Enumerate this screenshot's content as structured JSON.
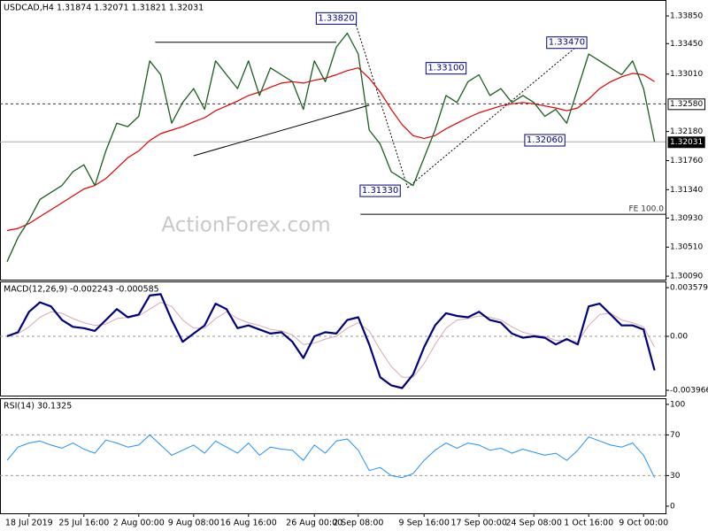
{
  "chart_data": [
    {
      "type": "line",
      "title": "USDCAD,H4  1.31874 1.32071 1.31821 1.32031",
      "watermark": "ActionForex.com",
      "categories": [
        null,
        null,
        "18 Jul 2019",
        null,
        null,
        null,
        null,
        "25 Jul 16:00",
        null,
        null,
        null,
        null,
        "2 Aug 00:00",
        null,
        null,
        null,
        null,
        "9 Aug 08:00",
        null,
        null,
        null,
        null,
        "16 Aug 16:00",
        null,
        null,
        null,
        null,
        null,
        "26 Aug 00:00",
        null,
        null,
        null,
        "2 Sep 08:00",
        null,
        null,
        null,
        null,
        null,
        "9 Sep 16:00",
        null,
        null,
        null,
        null,
        "17 Sep 00:00",
        null,
        null,
        null,
        null,
        "24 Sep 08:00",
        null,
        null,
        null,
        null,
        "1 Oct 16:00",
        null,
        null,
        null,
        null,
        "9 Oct 00:00",
        null
      ],
      "series": [
        {
          "color": "#1b5e20",
          "width": 1.3,
          "values": [
            1.303,
            1.3065,
            1.309,
            1.312,
            1.313,
            1.314,
            1.316,
            1.317,
            1.314,
            1.319,
            1.323,
            1.3225,
            1.324,
            1.332,
            1.33,
            1.323,
            1.326,
            1.328,
            1.325,
            1.332,
            1.33,
            1.328,
            1.332,
            1.327,
            1.331,
            1.33,
            1.329,
            1.325,
            1.332,
            1.329,
            1.334,
            1.336,
            1.333,
            1.322,
            1.32,
            1.316,
            1.315,
            1.314,
            1.318,
            1.322,
            1.327,
            1.326,
            1.329,
            1.33,
            1.327,
            1.328,
            1.326,
            1.327,
            1.326,
            1.324,
            1.325,
            1.323,
            1.328,
            1.333,
            1.332,
            1.331,
            1.33,
            1.332,
            1.328,
            1.3203
          ]
        },
        {
          "color": "#e00000",
          "width": 1.2,
          "values": [
            1.3075,
            1.3078,
            1.3085,
            1.3095,
            1.3105,
            1.3115,
            1.3125,
            1.3135,
            1.314,
            1.315,
            1.3165,
            1.318,
            1.319,
            1.3205,
            1.3215,
            1.322,
            1.3225,
            1.3232,
            1.3238,
            1.3248,
            1.3255,
            1.3262,
            1.327,
            1.3275,
            1.3282,
            1.3288,
            1.329,
            1.3288,
            1.3292,
            1.3295,
            1.33,
            1.3306,
            1.331,
            1.3295,
            1.3275,
            1.325,
            1.3228,
            1.3212,
            1.3208,
            1.3212,
            1.3222,
            1.323,
            1.3238,
            1.3245,
            1.325,
            1.3255,
            1.3258,
            1.326,
            1.3258,
            1.3255,
            1.3252,
            1.3248,
            1.3252,
            1.3265,
            1.328,
            1.329,
            1.3297,
            1.3302,
            1.33,
            1.329
          ]
        }
      ],
      "ylim": [
        1.3004,
        1.3408
      ],
      "yticks": [
        {
          "value": 1.3385,
          "label": "1.33850"
        },
        {
          "value": 1.3345,
          "label": "1.33450"
        },
        {
          "value": 1.3301,
          "label": "1.33010"
        },
        {
          "value": 1.3218,
          "label": "1.32180"
        },
        {
          "value": 1.3176,
          "label": "1.31760"
        },
        {
          "value": 1.3134,
          "label": "1.31340"
        },
        {
          "value": 1.3093,
          "label": "1.30930"
        },
        {
          "value": 1.3051,
          "label": "1.30510"
        },
        {
          "value": 1.3009,
          "label": "1.30090"
        }
      ],
      "hlines": [
        {
          "value": 1.3258,
          "label": "1.32580",
          "style": "dashed"
        },
        {
          "value": 1.32031,
          "label": "1.32031",
          "style": "current"
        }
      ],
      "annotations": [
        {
          "x": 30,
          "value": 1.3382,
          "label": "1.33820"
        },
        {
          "x": 51,
          "value": 1.3347,
          "label": "1.33470"
        },
        {
          "x": 40,
          "value": 1.331,
          "label": "1.33100"
        },
        {
          "x": 49,
          "value": 1.3206,
          "label": "1.32060"
        },
        {
          "x": 34,
          "value": 1.3133,
          "label": "1.31330"
        }
      ],
      "trendlines": [
        {
          "x": [
            13.5,
            30
          ],
          "y": [
            1.3347,
            1.3347
          ],
          "style": "solid"
        },
        {
          "x": [
            17,
            33
          ],
          "y": [
            1.3183,
            1.3256
          ],
          "style": "solid"
        },
        {
          "x": [
            31.6,
            36.5
          ],
          "y": [
            1.3382,
            1.3137
          ],
          "style": "dotted"
        },
        {
          "x": [
            36.5,
            52.6
          ],
          "y": [
            1.3137,
            1.335
          ],
          "style": "dotted"
        },
        {
          "x": [
            32.2,
            60
          ],
          "y": [
            1.30985,
            1.30985
          ],
          "style": "solid",
          "label": "FE 100.0"
        }
      ]
    },
    {
      "type": "line",
      "title": "MACD(12,26,9) -0.002243 -0.000585",
      "series": [
        {
          "color": "#000080",
          "width": 2.2,
          "values": [
            0.0,
            0.0003,
            0.0018,
            0.0025,
            0.0022,
            0.0012,
            0.0007,
            0.0006,
            0.0004,
            0.0012,
            0.002,
            0.0014,
            0.0016,
            0.003,
            0.0031,
            0.0012,
            -0.0004,
            0.0002,
            0.0008,
            0.0024,
            0.002,
            0.0006,
            0.0008,
            0.0005,
            0.0002,
            0.0003,
            -0.0004,
            -0.0016,
            0.0,
            0.0003,
            0.0002,
            0.0012,
            0.0014,
            -0.0006,
            -0.003,
            -0.0036,
            -0.0038,
            -0.0028,
            -0.0008,
            0.0008,
            0.0017,
            0.0015,
            0.0014,
            0.0018,
            0.0012,
            0.001,
            0.0002,
            -0.0001,
            0.0,
            -0.0001,
            -0.0006,
            -0.0002,
            -0.0006,
            0.0022,
            0.0024,
            0.0016,
            0.0008,
            0.0008,
            0.0005,
            -0.0025
          ]
        },
        {
          "color": "#d8a8b0",
          "width": 1,
          "values": [
            0.0001,
            0.0002,
            0.0007,
            0.0014,
            0.0018,
            0.0017,
            0.0013,
            0.001,
            0.0008,
            0.0009,
            0.0013,
            0.0014,
            0.0015,
            0.002,
            0.0025,
            0.0022,
            0.0012,
            0.0006,
            0.0006,
            0.0013,
            0.0018,
            0.0013,
            0.001,
            0.0008,
            0.0005,
            0.0004,
            0.0001,
            -0.0006,
            -0.0005,
            -0.0002,
            0.0,
            0.0006,
            0.001,
            0.0004,
            -0.001,
            -0.0022,
            -0.003,
            -0.003,
            -0.002,
            -0.0006,
            0.0006,
            0.0012,
            0.0013,
            0.0015,
            0.0014,
            0.0012,
            0.0007,
            0.0003,
            0.0001,
            0.0,
            -0.0003,
            -0.0003,
            -0.0004,
            0.0008,
            0.0016,
            0.0017,
            0.0012,
            0.001,
            0.0007,
            -0.0008
          ]
        }
      ],
      "ylim": [
        -0.004356,
        0.004034
      ],
      "yticks": [
        0.003579,
        {
          "value": 0,
          "label": "0.00"
        },
        -0.003966
      ],
      "levels": [
        0
      ]
    },
    {
      "type": "line",
      "title": "RSI(14) 30.1325",
      "series": [
        {
          "color": "#1e90ff",
          "width": 1,
          "values": [
            45,
            58,
            62,
            64,
            60,
            57,
            62,
            56,
            52,
            65,
            62,
            58,
            60,
            70,
            60,
            50,
            55,
            60,
            52,
            64,
            58,
            52,
            62,
            50,
            58,
            56,
            55,
            45,
            60,
            52,
            64,
            66,
            55,
            35,
            38,
            30,
            28,
            32,
            45,
            55,
            62,
            57,
            62,
            60,
            55,
            57,
            52,
            56,
            53,
            50,
            52,
            45,
            55,
            68,
            64,
            60,
            58,
            62,
            50,
            28
          ]
        }
      ],
      "ylim": [
        -7,
        106
      ],
      "yticks": [
        100,
        70,
        30,
        0
      ],
      "levels": [
        70,
        30
      ]
    }
  ]
}
